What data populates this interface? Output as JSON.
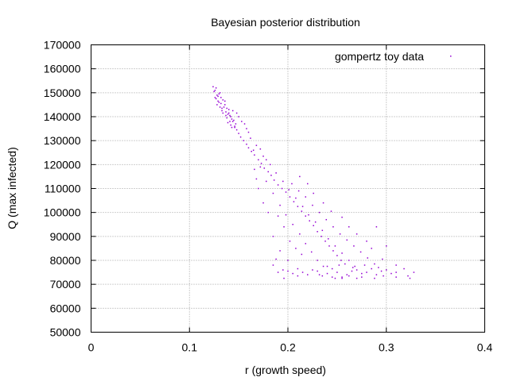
{
  "chart_data": {
    "type": "scatter",
    "title": "Bayesian posterior distribution",
    "xlabel": "r (growth speed)",
    "ylabel": "Q (max infected)",
    "xlim": [
      0,
      0.4
    ],
    "ylim": [
      50000,
      170000
    ],
    "x_ticks": [
      "0",
      "0.1",
      "0.2",
      "0.3",
      "0.4"
    ],
    "y_ticks": [
      "50000",
      "60000",
      "70000",
      "80000",
      "90000",
      "100000",
      "110000",
      "120000",
      "130000",
      "140000",
      "150000",
      "160000",
      "170000"
    ],
    "grid": true,
    "legend_position": "top-right",
    "series": [
      {
        "name": "gompertz toy data",
        "color": "#9400d3",
        "marker": "dot",
        "points": [
          [
            0.124,
            152500
          ],
          [
            0.126,
            151000
          ],
          [
            0.128,
            149000
          ],
          [
            0.127,
            147500
          ],
          [
            0.13,
            146000
          ],
          [
            0.132,
            145500
          ],
          [
            0.129,
            148500
          ],
          [
            0.131,
            150000
          ],
          [
            0.133,
            143500
          ],
          [
            0.135,
            144000
          ],
          [
            0.137,
            142000
          ],
          [
            0.139,
            141000
          ],
          [
            0.141,
            140500
          ],
          [
            0.143,
            139000
          ],
          [
            0.145,
            138500
          ],
          [
            0.147,
            137000
          ],
          [
            0.136,
            146500
          ],
          [
            0.134,
            141500
          ],
          [
            0.138,
            139500
          ],
          [
            0.14,
            143000
          ],
          [
            0.142,
            136500
          ],
          [
            0.144,
            142500
          ],
          [
            0.146,
            135500
          ],
          [
            0.148,
            134500
          ],
          [
            0.15,
            133000
          ],
          [
            0.152,
            131500
          ],
          [
            0.155,
            130000
          ],
          [
            0.158,
            128500
          ],
          [
            0.16,
            127000
          ],
          [
            0.163,
            125500
          ],
          [
            0.166,
            124000
          ],
          [
            0.17,
            122000
          ],
          [
            0.173,
            120500
          ],
          [
            0.176,
            118500
          ],
          [
            0.18,
            117000
          ],
          [
            0.183,
            115500
          ],
          [
            0.186,
            113500
          ],
          [
            0.19,
            111500
          ],
          [
            0.194,
            110000
          ],
          [
            0.198,
            108500
          ],
          [
            0.202,
            106500
          ],
          [
            0.206,
            104500
          ],
          [
            0.21,
            102500
          ],
          [
            0.214,
            100500
          ],
          [
            0.218,
            98500
          ],
          [
            0.222,
            96500
          ],
          [
            0.226,
            94500
          ],
          [
            0.23,
            92000
          ],
          [
            0.234,
            90000
          ],
          [
            0.238,
            88000
          ],
          [
            0.242,
            86000
          ],
          [
            0.246,
            84000
          ],
          [
            0.25,
            82000
          ],
          [
            0.254,
            80000
          ],
          [
            0.258,
            78500
          ],
          [
            0.165,
            126000
          ],
          [
            0.172,
            119000
          ],
          [
            0.178,
            113000
          ],
          [
            0.185,
            108000
          ],
          [
            0.192,
            103000
          ],
          [
            0.198,
            99000
          ],
          [
            0.205,
            95000
          ],
          [
            0.212,
            91000
          ],
          [
            0.218,
            87000
          ],
          [
            0.224,
            83500
          ],
          [
            0.23,
            80000
          ],
          [
            0.236,
            77500
          ],
          [
            0.175,
            123500
          ],
          [
            0.182,
            120000
          ],
          [
            0.188,
            116500
          ],
          [
            0.195,
            113000
          ],
          [
            0.201,
            109500
          ],
          [
            0.208,
            106000
          ],
          [
            0.215,
            102500
          ],
          [
            0.221,
            99000
          ],
          [
            0.228,
            96000
          ],
          [
            0.235,
            92500
          ],
          [
            0.241,
            89000
          ],
          [
            0.248,
            86000
          ],
          [
            0.255,
            83000
          ],
          [
            0.262,
            80000
          ],
          [
            0.268,
            77500
          ],
          [
            0.204,
            112000
          ],
          [
            0.211,
            109000
          ],
          [
            0.218,
            106500
          ],
          [
            0.225,
            103000
          ],
          [
            0.232,
            100000
          ],
          [
            0.239,
            97000
          ],
          [
            0.246,
            94000
          ],
          [
            0.253,
            91000
          ],
          [
            0.26,
            88500
          ],
          [
            0.267,
            86000
          ],
          [
            0.274,
            83500
          ],
          [
            0.281,
            81000
          ],
          [
            0.288,
            78500
          ],
          [
            0.195,
            76000
          ],
          [
            0.2,
            75500
          ],
          [
            0.205,
            74500
          ],
          [
            0.21,
            76500
          ],
          [
            0.215,
            75000
          ],
          [
            0.22,
            74000
          ],
          [
            0.225,
            76000
          ],
          [
            0.23,
            75500
          ],
          [
            0.235,
            73500
          ],
          [
            0.24,
            74500
          ],
          [
            0.245,
            76500
          ],
          [
            0.25,
            75000
          ],
          [
            0.255,
            73000
          ],
          [
            0.26,
            74000
          ],
          [
            0.265,
            75500
          ],
          [
            0.27,
            76000
          ],
          [
            0.275,
            74500
          ],
          [
            0.28,
            75000
          ],
          [
            0.285,
            76500
          ],
          [
            0.29,
            74000
          ],
          [
            0.295,
            75500
          ],
          [
            0.3,
            76000
          ],
          [
            0.305,
            74500
          ],
          [
            0.31,
            75000
          ],
          [
            0.318,
            76500
          ],
          [
            0.322,
            73500
          ],
          [
            0.328,
            75000
          ],
          [
            0.245,
            73000
          ],
          [
            0.255,
            72500
          ],
          [
            0.262,
            73500
          ],
          [
            0.27,
            72500
          ],
          [
            0.232,
            74000
          ],
          [
            0.248,
            72500
          ],
          [
            0.21,
            73500
          ],
          [
            0.275,
            73000
          ],
          [
            0.288,
            72500
          ],
          [
            0.297,
            73500
          ],
          [
            0.31,
            73000
          ],
          [
            0.324,
            72500
          ],
          [
            0.24,
            77500
          ],
          [
            0.252,
            78000
          ],
          [
            0.266,
            77000
          ],
          [
            0.278,
            78000
          ],
          [
            0.292,
            77000
          ],
          [
            0.185,
            90000
          ],
          [
            0.19,
            98500
          ],
          [
            0.196,
            94000
          ],
          [
            0.202,
            88000
          ],
          [
            0.208,
            85000
          ],
          [
            0.214,
            82500
          ],
          [
            0.188,
            80500
          ],
          [
            0.192,
            84000
          ],
          [
            0.2,
            80000
          ],
          [
            0.196,
            72500
          ],
          [
            0.19,
            75000
          ],
          [
            0.185,
            78000
          ],
          [
            0.18,
            100000
          ],
          [
            0.175,
            104000
          ],
          [
            0.17,
            110000
          ],
          [
            0.168,
            114000
          ],
          [
            0.166,
            118000
          ],
          [
            0.255,
            98000
          ],
          [
            0.262,
            94000
          ],
          [
            0.27,
            91000
          ],
          [
            0.28,
            88000
          ],
          [
            0.29,
            94000
          ],
          [
            0.285,
            85000
          ],
          [
            0.296,
            80500
          ],
          [
            0.3,
            86000
          ],
          [
            0.31,
            78000
          ],
          [
            0.236,
            104000
          ],
          [
            0.244,
            100500
          ],
          [
            0.226,
            108000
          ],
          [
            0.22,
            112000
          ],
          [
            0.212,
            115000
          ],
          [
            0.158,
            135000
          ],
          [
            0.162,
            131000
          ],
          [
            0.156,
            137000
          ],
          [
            0.153,
            138000
          ],
          [
            0.15,
            140000
          ],
          [
            0.148,
            141500
          ],
          [
            0.16,
            133500
          ],
          [
            0.168,
            128000
          ],
          [
            0.172,
            126500
          ],
          [
            0.178,
            122000
          ],
          [
            0.128,
            145000
          ],
          [
            0.125,
            150500
          ],
          [
            0.127,
            152000
          ],
          [
            0.13,
            149500
          ],
          [
            0.132,
            148000
          ],
          [
            0.134,
            147000
          ],
          [
            0.136,
            145000
          ],
          [
            0.138,
            143500
          ],
          [
            0.14,
            141500
          ],
          [
            0.142,
            140000
          ],
          [
            0.144,
            138000
          ],
          [
            0.146,
            136000
          ],
          [
            0.131,
            144000
          ],
          [
            0.133,
            142500
          ],
          [
            0.137,
            140500
          ],
          [
            0.139,
            137500
          ],
          [
            0.141,
            138000
          ],
          [
            0.143,
            135500
          ],
          [
            0.126,
            148000
          ],
          [
            0.129,
            146500
          ]
        ]
      }
    ]
  }
}
